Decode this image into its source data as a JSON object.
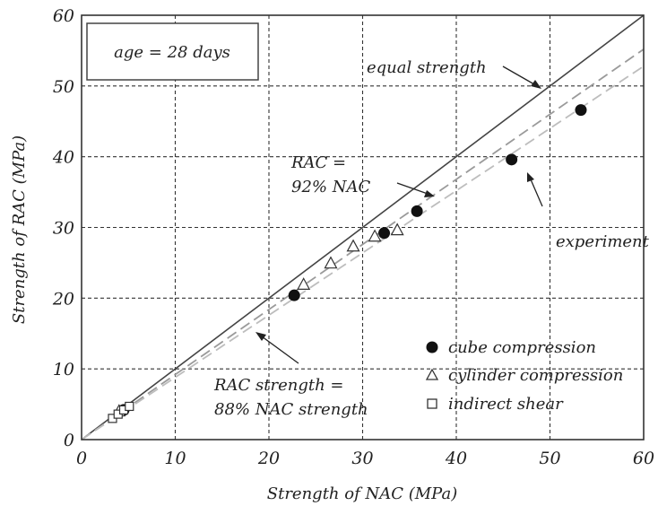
{
  "chart_data": {
    "type": "scatter",
    "xlabel": "Strength of NAC (MPa)",
    "ylabel": "Strength of RAC (MPa)",
    "xlim": [
      0,
      60
    ],
    "ylim": [
      0,
      60
    ],
    "x_ticks": [
      "0",
      "10",
      "20",
      "30",
      "40",
      "50",
      "60"
    ],
    "y_ticks": [
      "0",
      "10",
      "20",
      "30",
      "40",
      "50",
      "60"
    ],
    "grid": true,
    "legend_position": "bottom-right",
    "age_label": "age = 28 days",
    "series": [
      {
        "name": "cube compression",
        "marker": "filled-circle",
        "points": [
          [
            4.5,
            4.2
          ],
          [
            22.7,
            20.4
          ],
          [
            32.3,
            29.2
          ],
          [
            35.8,
            32.3
          ],
          [
            45.9,
            39.6
          ],
          [
            53.3,
            46.6
          ]
        ]
      },
      {
        "name": "cylinder compression",
        "marker": "open-triangle",
        "points": [
          [
            4.0,
            4.0
          ],
          [
            23.7,
            21.9
          ],
          [
            26.6,
            24.9
          ],
          [
            29.0,
            27.3
          ],
          [
            31.3,
            28.7
          ],
          [
            33.7,
            29.6
          ]
        ]
      },
      {
        "name": "indirect shear",
        "marker": "open-square",
        "points": [
          [
            3.3,
            3.0
          ],
          [
            3.9,
            3.6
          ],
          [
            4.5,
            4.2
          ],
          [
            5.1,
            4.7
          ]
        ]
      }
    ],
    "lines": [
      {
        "label": "equal strength",
        "slope": 1.0,
        "style": "solid",
        "color": "#444444"
      },
      {
        "label": "RAC = 92% NAC",
        "slope": 0.92,
        "style": "dashed",
        "color": "#9a9a9a"
      },
      {
        "label": "RAC strength = 88% NAC strength",
        "slope": 0.88,
        "style": "dashed",
        "color": "#bdbdbd"
      }
    ],
    "annotations": {
      "equal_strength": "equal strength",
      "rac92_line1": "RAC =",
      "rac92_line2": "92% NAC",
      "experiment": "experiment",
      "rac88_line1": "RAC strength =",
      "rac88_line2": "88% NAC strength"
    }
  }
}
